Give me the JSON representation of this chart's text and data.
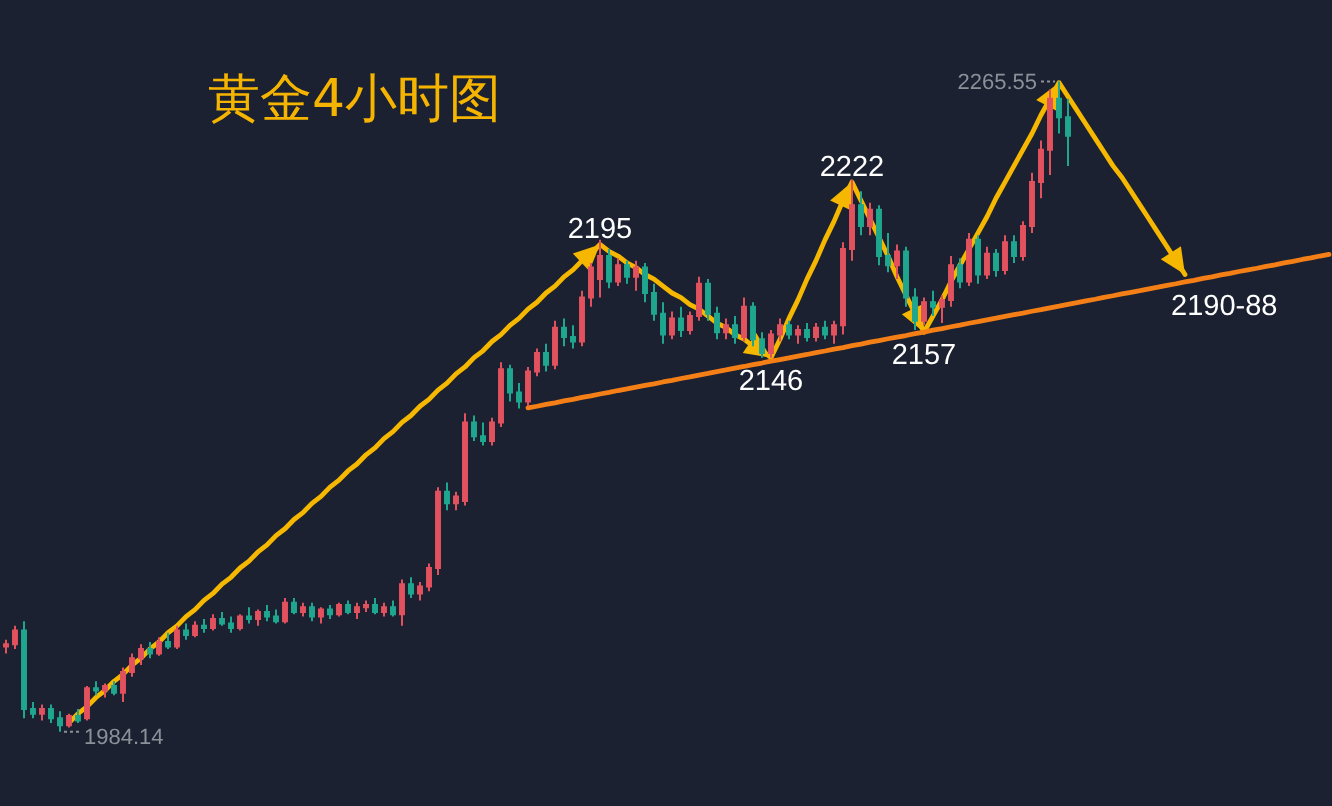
{
  "chart_data": {
    "type": "candlestick",
    "title": "黄金4小时图",
    "categories": [
      null,
      null,
      null,
      null,
      null,
      null,
      null,
      null,
      null,
      null,
      null,
      null,
      null,
      null,
      null,
      null,
      null,
      null,
      null,
      null,
      null,
      null,
      null,
      null,
      null,
      null,
      null,
      null,
      null,
      null,
      null,
      null,
      null,
      null,
      null,
      null,
      null,
      null,
      null,
      null,
      null,
      null,
      null,
      null,
      null,
      null,
      null,
      null,
      null,
      null,
      null,
      null,
      null,
      null,
      null,
      null,
      null,
      null,
      null,
      null,
      null,
      null,
      null,
      null,
      null,
      null,
      null,
      null,
      null,
      null,
      null,
      null,
      null,
      null,
      null,
      null,
      null,
      null,
      null,
      null,
      null,
      null,
      null,
      null,
      null,
      null,
      null,
      null,
      null,
      null,
      null,
      null,
      null,
      null,
      null,
      null,
      null,
      null,
      null,
      null,
      null,
      null,
      null,
      null,
      null,
      null,
      null,
      null,
      null,
      null,
      null,
      null,
      null,
      null,
      null,
      null,
      null,
      null,
      null,
      null,
      null,
      null,
      null,
      null,
      null,
      null,
      null,
      null,
      null,
      null,
      null,
      null,
      null,
      null,
      null,
      null,
      null,
      null,
      null,
      null,
      null,
      null,
      null,
      null,
      null,
      null,
      null,
      null
    ],
    "ohlc": [
      [
        2021,
        2024,
        2018,
        2022
      ],
      [
        2022,
        2030,
        2020,
        2028
      ],
      [
        2028,
        2032,
        1990,
        1994
      ],
      [
        1994,
        1997,
        1990,
        1992
      ],
      [
        1992,
        1996,
        1989,
        1994
      ],
      [
        1994,
        1996,
        1988,
        1990
      ],
      [
        1990,
        1993,
        1984.14,
        1987
      ],
      [
        1987,
        1992,
        1986,
        1991
      ],
      [
        1991,
        1994,
        1988,
        1989
      ],
      [
        1990,
        2004,
        1989,
        2003
      ],
      [
        2003,
        2006,
        2000,
        2002
      ],
      [
        2002,
        2005,
        1999,
        2004
      ],
      [
        2004,
        2006,
        2000,
        2001
      ],
      [
        2001,
        2012,
        1997,
        2010
      ],
      [
        2010,
        2018,
        2008,
        2016
      ],
      [
        2016,
        2022,
        2013,
        2020
      ],
      [
        2020,
        2023,
        2016,
        2018
      ],
      [
        2018,
        2025,
        2017,
        2023
      ],
      [
        2023,
        2027,
        2020,
        2021
      ],
      [
        2021,
        2030,
        2020,
        2028
      ],
      [
        2028,
        2031,
        2024,
        2026
      ],
      [
        2026,
        2032,
        2025,
        2030
      ],
      [
        2030,
        2033,
        2027,
        2029
      ],
      [
        2029,
        2035,
        2028,
        2033
      ],
      [
        2033,
        2036,
        2030,
        2031
      ],
      [
        2031,
        2034,
        2027,
        2029
      ],
      [
        2029,
        2035,
        2028,
        2034
      ],
      [
        2034,
        2038,
        2031,
        2033
      ],
      [
        2033,
        2037,
        2030,
        2036
      ],
      [
        2036,
        2039,
        2032,
        2034
      ],
      [
        2034,
        2037,
        2031,
        2032
      ],
      [
        2032,
        2042,
        2031,
        2040
      ],
      [
        2040,
        2042,
        2035,
        2036
      ],
      [
        2036,
        2040,
        2034,
        2038
      ],
      [
        2038,
        2040,
        2032,
        2034
      ],
      [
        2034,
        2038,
        2031,
        2037
      ],
      [
        2037,
        2039,
        2033,
        2035
      ],
      [
        2035,
        2040,
        2034,
        2039
      ],
      [
        2039,
        2041,
        2035,
        2036
      ],
      [
        2036,
        2040,
        2033,
        2038
      ],
      [
        2038,
        2041,
        2036,
        2039
      ],
      [
        2039,
        2042,
        2035,
        2036
      ],
      [
        2036,
        2040,
        2034,
        2038
      ],
      [
        2038,
        2041,
        2034,
        2035
      ],
      [
        2035,
        2050,
        2030,
        2048
      ],
      [
        2048,
        2051,
        2042,
        2044
      ],
      [
        2044,
        2049,
        2041,
        2047
      ],
      [
        2047,
        2057,
        2045,
        2055
      ],
      [
        2055,
        2090,
        2052,
        2088
      ],
      [
        2088,
        2092,
        2080,
        2083
      ],
      [
        2083,
        2088,
        2080,
        2086
      ],
      [
        2084,
        2122,
        2082,
        2118
      ],
      [
        2118,
        2121,
        2110,
        2112
      ],
      [
        2112,
        2118,
        2108,
        2110
      ],
      [
        2110,
        2120,
        2108,
        2118
      ],
      [
        2118,
        2144,
        2116,
        2141
      ],
      [
        2141,
        2143,
        2127,
        2131
      ],
      [
        2131,
        2135,
        2124,
        2127
      ],
      [
        2127,
        2142,
        2125,
        2140
      ],
      [
        2140,
        2150,
        2138,
        2148
      ],
      [
        2148,
        2152,
        2140,
        2143
      ],
      [
        2143,
        2162,
        2141,
        2159
      ],
      [
        2159,
        2163,
        2151,
        2155
      ],
      [
        2155,
        2160,
        2150,
        2153
      ],
      [
        2153,
        2175,
        2151,
        2172
      ],
      [
        2172,
        2187,
        2168,
        2185
      ],
      [
        2180,
        2197,
        2172,
        2190
      ],
      [
        2190,
        2193,
        2176,
        2179
      ],
      [
        2179,
        2189,
        2177,
        2186
      ],
      [
        2186,
        2188,
        2178,
        2181
      ],
      [
        2181,
        2188,
        2175,
        2185
      ],
      [
        2185,
        2187,
        2170,
        2174
      ],
      [
        2174,
        2178,
        2162,
        2165
      ],
      [
        2165,
        2170,
        2152,
        2156
      ],
      [
        2156,
        2166,
        2154,
        2163
      ],
      [
        2163,
        2168,
        2155,
        2158
      ],
      [
        2158,
        2166,
        2156,
        2164
      ],
      [
        2164,
        2181,
        2162,
        2178
      ],
      [
        2178,
        2180,
        2162,
        2165
      ],
      [
        2165,
        2168,
        2154,
        2157
      ],
      [
        2157,
        2163,
        2154,
        2160
      ],
      [
        2160,
        2164,
        2152,
        2155
      ],
      [
        2155,
        2172,
        2153,
        2168
      ],
      [
        2168,
        2170,
        2151,
        2154
      ],
      [
        2154,
        2157,
        2146,
        2148
      ],
      [
        2148,
        2158,
        2146,
        2156
      ],
      [
        2156,
        2163,
        2153,
        2160
      ],
      [
        2160,
        2162,
        2154,
        2156
      ],
      [
        2156,
        2160,
        2152,
        2158
      ],
      [
        2158,
        2161,
        2153,
        2155
      ],
      [
        2155,
        2161,
        2153,
        2159
      ],
      [
        2159,
        2162,
        2154,
        2156
      ],
      [
        2156,
        2162,
        2152,
        2160
      ],
      [
        2160,
        2196,
        2156,
        2193
      ],
      [
        2193,
        2223,
        2188,
        2212
      ],
      [
        2212,
        2218,
        2199,
        2203
      ],
      [
        2203,
        2213,
        2199,
        2210
      ],
      [
        2210,
        2212,
        2186,
        2190
      ],
      [
        2190,
        2200,
        2183,
        2186
      ],
      [
        2186,
        2195,
        2180,
        2192
      ],
      [
        2192,
        2194,
        2168,
        2172
      ],
      [
        2172,
        2176,
        2158,
        2162
      ],
      [
        2162,
        2172,
        2160,
        2170
      ],
      [
        2170,
        2175,
        2164,
        2168
      ],
      [
        2168,
        2173,
        2161,
        2171
      ],
      [
        2171,
        2190,
        2168,
        2186
      ],
      [
        2186,
        2189,
        2176,
        2179
      ],
      [
        2179,
        2200,
        2177,
        2197
      ],
      [
        2197,
        2199,
        2178,
        2182
      ],
      [
        2182,
        2194,
        2180,
        2191
      ],
      [
        2191,
        2193,
        2181,
        2184
      ],
      [
        2184,
        2199,
        2182,
        2196
      ],
      [
        2196,
        2199,
        2187,
        2190
      ],
      [
        2190,
        2205,
        2188,
        2203
      ],
      [
        2203,
        2226,
        2200,
        2222
      ],
      [
        2222,
        2240,
        2215,
        2236
      ],
      [
        2236,
        2262,
        2225,
        2258
      ],
      [
        2258,
        2265.55,
        2243,
        2250
      ],
      [
        2250,
        2258,
        2229,
        2242
      ],
      null,
      null,
      null,
      null,
      null,
      null,
      null,
      null,
      null,
      null,
      null,
      null,
      null,
      null,
      null,
      null,
      null,
      null,
      null,
      null,
      null,
      null,
      null,
      null,
      null,
      null,
      null,
      null,
      null
    ],
    "colors": [
      "#e2515e",
      "#e2515e",
      "#1fa68e",
      "#1fa68e",
      "#e2515e",
      "#1fa68e",
      "#1fa68e",
      "#e2515e",
      "#1fa68e",
      "#e2515e",
      "#1fa68e",
      "#e2515e",
      "#1fa68e",
      "#e2515e",
      "#e2515e",
      "#e2515e",
      "#1fa68e",
      "#e2515e",
      "#1fa68e",
      "#e2515e",
      "#1fa68e",
      "#e2515e",
      "#1fa68e",
      "#e2515e",
      "#1fa68e",
      "#1fa68e",
      "#e2515e",
      "#1fa68e",
      "#e2515e",
      "#1fa68e",
      "#1fa68e",
      "#e2515e",
      "#1fa68e",
      "#e2515e",
      "#1fa68e",
      "#e2515e",
      "#1fa68e",
      "#e2515e",
      "#1fa68e",
      "#e2515e",
      "#e2515e",
      "#1fa68e",
      "#e2515e",
      "#1fa68e",
      "#e2515e",
      "#1fa68e",
      "#e2515e",
      "#e2515e",
      "#e2515e",
      "#1fa68e",
      "#e2515e",
      "#e2515e",
      "#1fa68e",
      "#1fa68e",
      "#e2515e",
      "#e2515e",
      "#1fa68e",
      "#1fa68e",
      "#e2515e",
      "#e2515e",
      "#1fa68e",
      "#e2515e",
      "#1fa68e",
      "#1fa68e",
      "#e2515e",
      "#e2515e",
      "#e2515e",
      "#1fa68e",
      "#e2515e",
      "#1fa68e",
      "#e2515e",
      "#1fa68e",
      "#1fa68e",
      "#1fa68e",
      "#e2515e",
      "#1fa68e",
      "#e2515e",
      "#e2515e",
      "#1fa68e",
      "#1fa68e",
      "#e2515e",
      "#1fa68e",
      "#e2515e",
      "#1fa68e",
      "#1fa68e",
      "#e2515e",
      "#e2515e",
      "#1fa68e",
      "#e2515e",
      "#1fa68e",
      "#e2515e",
      "#1fa68e",
      "#e2515e",
      "#e2515e",
      "#e2515e",
      "#1fa68e",
      "#e2515e",
      "#1fa68e",
      "#1fa68e",
      "#e2515e",
      "#1fa68e",
      "#1fa68e",
      "#e2515e",
      "#1fa68e",
      "#e2515e",
      "#e2515e",
      "#1fa68e",
      "#e2515e",
      "#1fa68e",
      "#e2515e",
      "#1fa68e",
      "#e2515e",
      "#1fa68e",
      "#e2515e",
      "#e2515e",
      "#e2515e",
      "#e2515e",
      "#1fa68e",
      "#1fa68e",
      null,
      null,
      null,
      null,
      null,
      null,
      null,
      null,
      null,
      null,
      null,
      null,
      null,
      null,
      null,
      null,
      null,
      null,
      null,
      null,
      null,
      null,
      null,
      null,
      null,
      null,
      null,
      null,
      null
    ],
    "series": [
      {
        "type": "line",
        "color": "#f5b700",
        "values": [
          null,
          null,
          null,
          null,
          null,
          null,
          null,
          1988,
          1992,
          1995,
          1999,
          2002,
          2006,
          2009,
          2013,
          2016,
          2020,
          2023,
          2027,
          2030,
          2034,
          2037,
          2041,
          2044,
          2048,
          2051,
          2055,
          2058,
          2062,
          2065,
          2069,
          2072,
          2076,
          2079,
          2083,
          2086,
          2090,
          2093,
          2097,
          2100,
          2104,
          2107,
          2111,
          2114,
          2118,
          2121,
          2125,
          2128,
          2132,
          2135,
          2139,
          2142,
          2146,
          2149,
          2153,
          2156,
          2160,
          2163,
          2167,
          2170,
          2174,
          2177,
          2181,
          2184,
          2188,
          2191,
          2195,
          2192,
          2190,
          2187,
          2185,
          2182,
          2180,
          2177,
          2174,
          2172,
          2169,
          2167,
          2164,
          2161,
          2159,
          2156,
          2154,
          2151,
          2149,
          2146,
          2154,
          2163,
          2171,
          2180,
          2188,
          2197,
          2205,
          2214,
          2222,
          2214,
          2206,
          2198,
          2190,
          2181,
          2173,
          2165,
          2157,
          2164,
          2171,
          2179,
          2186,
          2193,
          2200,
          2207,
          2215,
          2222,
          2229,
          2236,
          2243,
          2251,
          2258,
          2265,
          2259,
          2253,
          2247,
          2241,
          2235,
          2229,
          2224,
          2218,
          2212,
          2206,
          2200,
          2194,
          2188,
          2182,
          null,
          null,
          null,
          null,
          null,
          null,
          null,
          null,
          null,
          null,
          null,
          null,
          null,
          null,
          null,
          null
        ]
      },
      {
        "type": "line",
        "color": "#f57f17",
        "values": [
          null,
          null,
          null,
          null,
          null,
          null,
          null,
          null,
          null,
          null,
          null,
          null,
          null,
          null,
          null,
          null,
          null,
          null,
          null,
          null,
          null,
          null,
          null,
          null,
          null,
          null,
          null,
          null,
          null,
          null,
          null,
          null,
          null,
          null,
          null,
          null,
          null,
          null,
          null,
          null,
          null,
          null,
          null,
          null,
          null,
          null,
          null,
          null,
          null,
          null,
          null,
          null,
          null,
          null,
          null,
          null,
          null,
          null,
          2124.3,
          2125.0,
          2125.8,
          2126.5,
          2127.3,
          2128.0,
          2128.8,
          2129.5,
          2130.3,
          2131.0,
          2131.8,
          2132.5,
          2133.3,
          2134.0,
          2134.7,
          2135.5,
          2136.2,
          2137.0,
          2137.7,
          2138.5,
          2139.2,
          2140.0,
          2140.7,
          2141.5,
          2142.2,
          2143.0,
          2143.7,
          2144.5,
          2145.2,
          2145.9,
          2146.7,
          2147.4,
          2148.2,
          2148.9,
          2149.7,
          2150.4,
          2151.2,
          2151.9,
          2152.7,
          2153.4,
          2154.2,
          2154.9,
          2155.6,
          2156.4,
          2157.1,
          2157.9,
          2158.6,
          2159.4,
          2160.1,
          2160.9,
          2161.6,
          2162.4,
          2163.1,
          2163.9,
          2164.6,
          2165.3,
          2166.1,
          2166.8,
          2167.6,
          2168.3,
          2169.1,
          2169.8,
          2170.6,
          2171.3,
          2172.1,
          2172.8,
          2173.6,
          2174.3,
          2175.0,
          2175.8,
          2176.5,
          2177.3,
          2178.0,
          2178.8,
          2179.5,
          2180.3,
          2181.0,
          2181.8,
          2182.5,
          2183.3,
          2184.0,
          2184.7,
          2185.5,
          2186.2,
          2187.0,
          2187.7,
          2188.5,
          2189.2,
          2190.0,
          2190.7
        ]
      }
    ],
    "annotations": [
      {
        "text": "2195",
        "y": 2195
      },
      {
        "text": "2146",
        "y": 2146
      },
      {
        "text": "2222",
        "y": 2222
      },
      {
        "text": "2157",
        "y": 2157
      },
      {
        "text": "2190-88",
        "y": 2182
      },
      "2265.55",
      "1984.14"
    ]
  }
}
